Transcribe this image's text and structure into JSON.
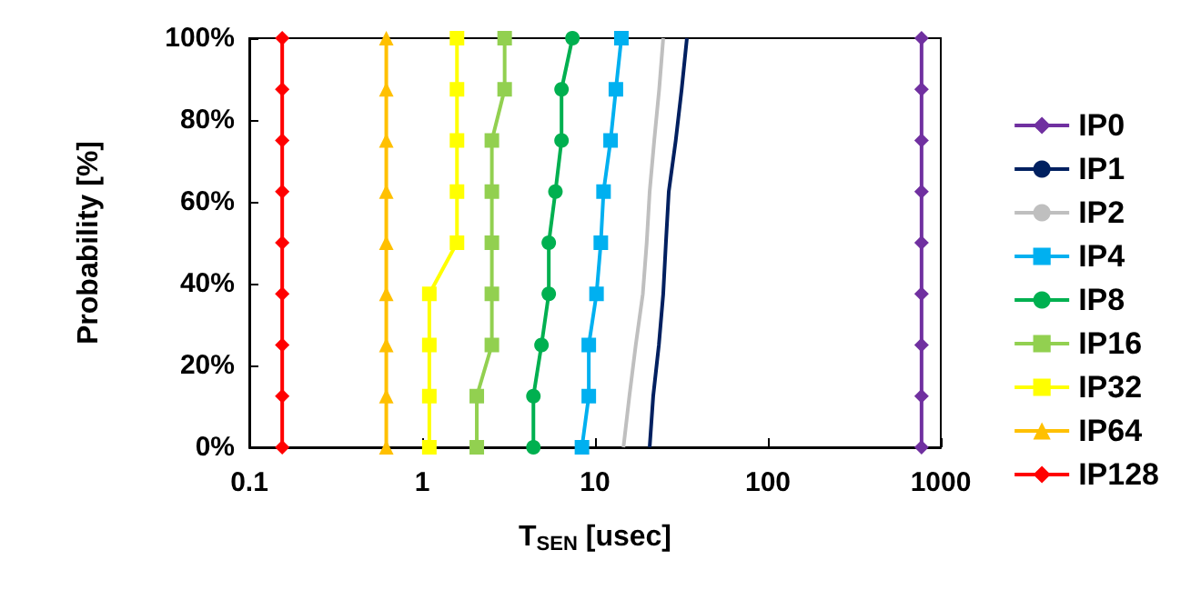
{
  "chart_data": {
    "type": "line",
    "xlabel": "T$_{SEN}$ [usec]",
    "ylabel": "Probability [%]",
    "log": "x",
    "xlim": [
      0.1,
      1000
    ],
    "xticks": [
      0.1,
      1,
      10,
      100,
      1000
    ],
    "ylim": [
      0,
      100
    ],
    "yticks": [
      {
        "value": 0,
        "label": "0%"
      },
      {
        "value": 20,
        "label": "20%"
      },
      {
        "value": 40,
        "label": "40%"
      },
      {
        "value": 60,
        "label": "60%"
      },
      {
        "value": 80,
        "label": "80%"
      },
      {
        "value": 100,
        "label": "100%"
      }
    ],
    "grid": false,
    "legend": "right",
    "series": [
      {
        "name": "IP0",
        "color": "#7030a0",
        "marker": "diamond",
        "x": [
          774,
          774,
          774,
          774,
          774,
          774,
          774,
          774,
          774
        ],
        "values": [
          0,
          12.5,
          25,
          37.5,
          50,
          62.5,
          75,
          87.5,
          100
        ]
      },
      {
        "name": "IP1",
        "color": "#002060",
        "marker": "none",
        "x": [
          20.7,
          21.7,
          23.4,
          24.8,
          25.7,
          26.7,
          29.3,
          31.7,
          34
        ],
        "values": [
          0,
          12.5,
          25,
          37.5,
          50,
          62.5,
          75,
          87.5,
          100
        ]
      },
      {
        "name": "IP2",
        "color": "#bfbfbf",
        "marker": "none",
        "x": [
          14.6,
          15.8,
          17.2,
          18.9,
          19.9,
          20.7,
          22,
          23.5,
          24.8
        ],
        "values": [
          0,
          12.5,
          25,
          37.5,
          50,
          62.5,
          75,
          87.5,
          100
        ]
      },
      {
        "name": "IP4",
        "color": "#00b0f0",
        "marker": "square",
        "x": [
          8.4,
          9.2,
          9.2,
          10.2,
          10.8,
          11.2,
          12.3,
          13.2,
          14.2
        ],
        "values": [
          0,
          12.5,
          25,
          37.5,
          50,
          62.5,
          75,
          87.5,
          100
        ]
      },
      {
        "name": "IP8",
        "color": "#00b050",
        "marker": "circle",
        "x": [
          4.4,
          4.4,
          4.9,
          5.4,
          5.4,
          5.9,
          6.4,
          6.4,
          7.4
        ],
        "values": [
          0,
          12.5,
          25,
          37.5,
          50,
          62.5,
          75,
          87.5,
          100
        ]
      },
      {
        "name": "IP16",
        "color": "#92d050",
        "marker": "square",
        "x": [
          2.07,
          2.07,
          2.53,
          2.53,
          2.53,
          2.53,
          2.53,
          3.0,
          3.0
        ],
        "values": [
          0,
          12.5,
          25,
          37.5,
          50,
          62.5,
          75,
          87.5,
          100
        ]
      },
      {
        "name": "IP32",
        "color": "#ffff00",
        "marker": "square",
        "x": [
          1.1,
          1.1,
          1.1,
          1.1,
          1.59,
          1.59,
          1.59,
          1.59,
          1.59
        ],
        "values": [
          0,
          12.5,
          25,
          37.5,
          50,
          62.5,
          75,
          87.5,
          100
        ]
      },
      {
        "name": "IP64",
        "color": "#ffc000",
        "marker": "triangle",
        "x": [
          0.62,
          0.62,
          0.62,
          0.62,
          0.62,
          0.62,
          0.62,
          0.62,
          0.62
        ],
        "values": [
          0,
          12.5,
          25,
          37.5,
          50,
          62.5,
          75,
          87.5,
          100
        ]
      },
      {
        "name": "IP128",
        "color": "#ff0000",
        "marker": "diamond",
        "x": [
          0.155,
          0.155,
          0.155,
          0.155,
          0.155,
          0.155,
          0.155,
          0.155,
          0.155
        ],
        "values": [
          0,
          12.5,
          25,
          37.5,
          50,
          62.5,
          75,
          87.5,
          100
        ]
      }
    ]
  }
}
